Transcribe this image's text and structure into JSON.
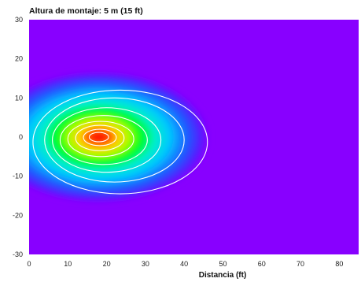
{
  "chart_data": {
    "type": "heatmap",
    "title": "Altura de montaje: 5 m (15 ft)",
    "xlabel": "Distancia (ft)",
    "ylabel": "",
    "xlim": [
      0,
      85
    ],
    "ylim": [
      -30,
      30
    ],
    "xticks": [
      0,
      10,
      20,
      30,
      40,
      50,
      60,
      70,
      80
    ],
    "xtick_labels": [
      "0",
      "10",
      "20",
      "30",
      "40",
      "50",
      "60",
      "70",
      "80"
    ],
    "yticks": [
      30,
      20,
      10,
      0,
      -10,
      -20,
      -30
    ],
    "ytick_labels": [
      "30",
      "20",
      "10",
      "0",
      "-10",
      "-20",
      "-30"
    ],
    "peak": {
      "x": 18,
      "y": 0
    },
    "background_color": "#8800ff",
    "contour_color": "#ffffff",
    "grid": false,
    "legend": "none",
    "contours": [
      {
        "xmin": 1,
        "xmax": 46,
        "ymin": -14.5,
        "ymax": 12
      },
      {
        "xmin": 4,
        "xmax": 40,
        "ymin": -11.5,
        "ymax": 10
      },
      {
        "xmin": 6,
        "xmax": 34,
        "ymin": -9,
        "ymax": 7.5
      },
      {
        "xmin": 8,
        "xmax": 30.5,
        "ymin": -7,
        "ymax": 5.5
      },
      {
        "xmin": 10,
        "xmax": 27,
        "ymin": -5,
        "ymax": 4
      },
      {
        "xmin": 12,
        "xmax": 24.5,
        "ymin": -3.5,
        "ymax": 3
      },
      {
        "xmin": 14,
        "xmax": 22.5,
        "ymin": -2.2,
        "ymax": 2
      },
      {
        "xmin": 15.5,
        "xmax": 20.5,
        "ymin": -1.2,
        "ymax": 1.2
      }
    ]
  }
}
